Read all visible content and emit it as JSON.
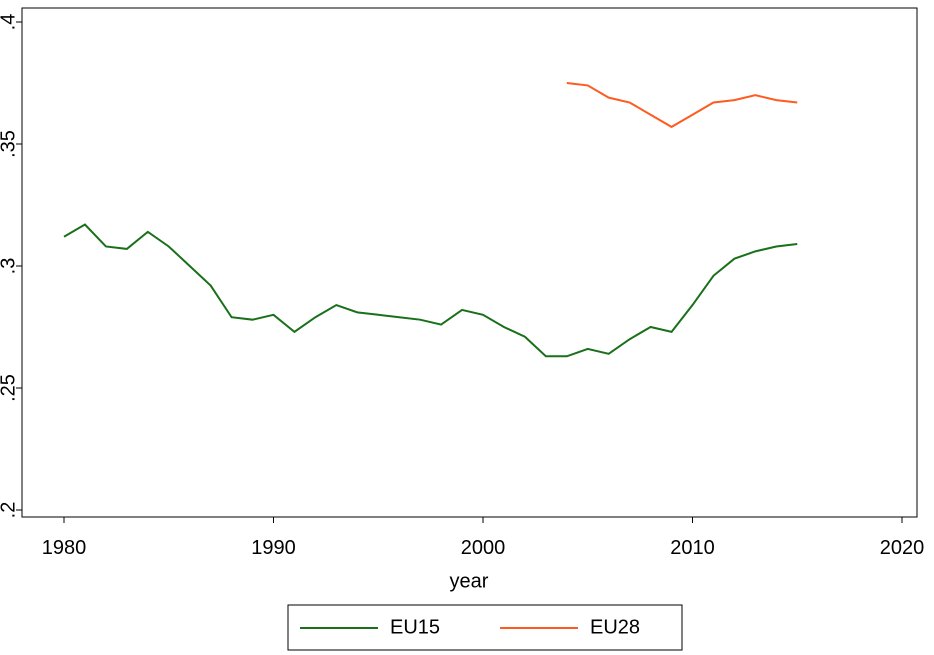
{
  "chart_data": {
    "type": "line",
    "xlabel": "year",
    "x": [
      1980,
      1981,
      1982,
      1983,
      1984,
      1985,
      1986,
      1987,
      1988,
      1989,
      1990,
      1991,
      1992,
      1993,
      1994,
      1995,
      1996,
      1997,
      1998,
      1999,
      2000,
      2001,
      2002,
      2003,
      2004,
      2005,
      2006,
      2007,
      2008,
      2009,
      2010,
      2011,
      2012,
      2013,
      2014,
      2015
    ],
    "series": [
      {
        "name": "EU15",
        "color": "#1a701a",
        "values": [
          0.312,
          0.317,
          0.308,
          0.307,
          0.314,
          0.308,
          0.3,
          0.292,
          0.279,
          0.278,
          0.28,
          0.273,
          0.279,
          0.284,
          0.281,
          0.28,
          0.279,
          0.278,
          0.276,
          0.282,
          0.28,
          0.275,
          0.271,
          0.263,
          0.263,
          0.266,
          0.264,
          0.27,
          0.275,
          0.273,
          0.284,
          0.296,
          0.303,
          0.306,
          0.308,
          0.309
        ]
      },
      {
        "name": "EU28",
        "color": "#ff5a1f",
        "values": [
          null,
          null,
          null,
          null,
          null,
          null,
          null,
          null,
          null,
          null,
          null,
          null,
          null,
          null,
          null,
          null,
          null,
          null,
          null,
          null,
          null,
          null,
          null,
          null,
          0.375,
          0.374,
          0.369,
          0.367,
          0.362,
          0.357,
          0.362,
          0.367,
          0.368,
          0.37,
          0.368,
          0.367
        ]
      }
    ],
    "xlim": [
      1980,
      2020
    ],
    "xticks": [
      1980,
      1990,
      2000,
      2010,
      2020
    ],
    "ylim": [
      0.2,
      0.4
    ],
    "yticks": [
      {
        "value": 0.2,
        "label": ".2"
      },
      {
        "value": 0.25,
        "label": ".25"
      },
      {
        "value": 0.3,
        "label": ".3"
      },
      {
        "value": 0.35,
        "label": ".35"
      },
      {
        "value": 0.4,
        "label": ".4"
      }
    ],
    "grid": false
  }
}
